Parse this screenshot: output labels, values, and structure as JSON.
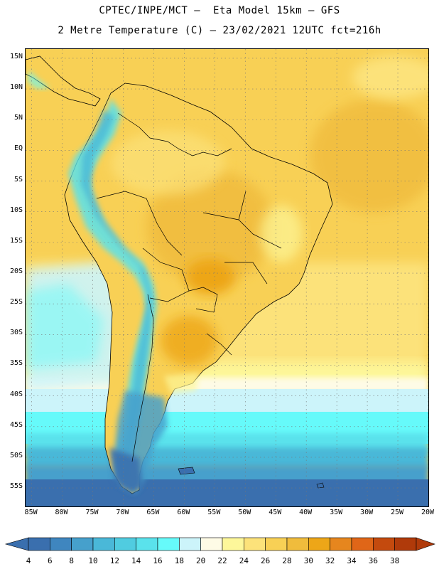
{
  "header": {
    "title_line1": "CPTEC/INPE/MCT –  Eta Model 15km – GFS",
    "title_line2": "2 Metre Temperature (C) – 23/02/2021 12UTC fct=216h"
  },
  "map": {
    "lat_labels": [
      "15N",
      "10N",
      "5N",
      "EQ",
      "5S",
      "10S",
      "15S",
      "20S",
      "25S",
      "30S",
      "35S",
      "40S",
      "45S",
      "50S",
      "55S"
    ],
    "lat_values": [
      15,
      10,
      5,
      0,
      -5,
      -10,
      -15,
      -20,
      -25,
      -30,
      -35,
      -40,
      -45,
      -50,
      -55
    ],
    "lon_labels": [
      "85W",
      "80W",
      "75W",
      "70W",
      "65W",
      "60W",
      "55W",
      "50W",
      "45W",
      "40W",
      "35W",
      "30W",
      "25W",
      "20W"
    ],
    "lon_values": [
      -85,
      -80,
      -75,
      -70,
      -65,
      -60,
      -55,
      -50,
      -45,
      -40,
      -35,
      -30,
      -25,
      -20
    ],
    "lat_range": [
      -58,
      16.5
    ],
    "lon_range": [
      -86,
      -20
    ]
  },
  "colorbar": {
    "labels": [
      "4",
      "6",
      "8",
      "10",
      "12",
      "14",
      "16",
      "18",
      "20",
      "22",
      "24",
      "26",
      "28",
      "30",
      "32",
      "34",
      "36",
      "38"
    ],
    "colors": [
      "#3a6fae",
      "#3f86bf",
      "#46a0cc",
      "#4ab8d8",
      "#50cce0",
      "#5ae2ec",
      "#66fafa",
      "#ccf4fa",
      "#fefbe6",
      "#fdf79a",
      "#fce27a",
      "#f8d055",
      "#f0bc3c",
      "#eda618",
      "#e6861e",
      "#e06618",
      "#c44a0e",
      "#b03a0a"
    ]
  }
}
